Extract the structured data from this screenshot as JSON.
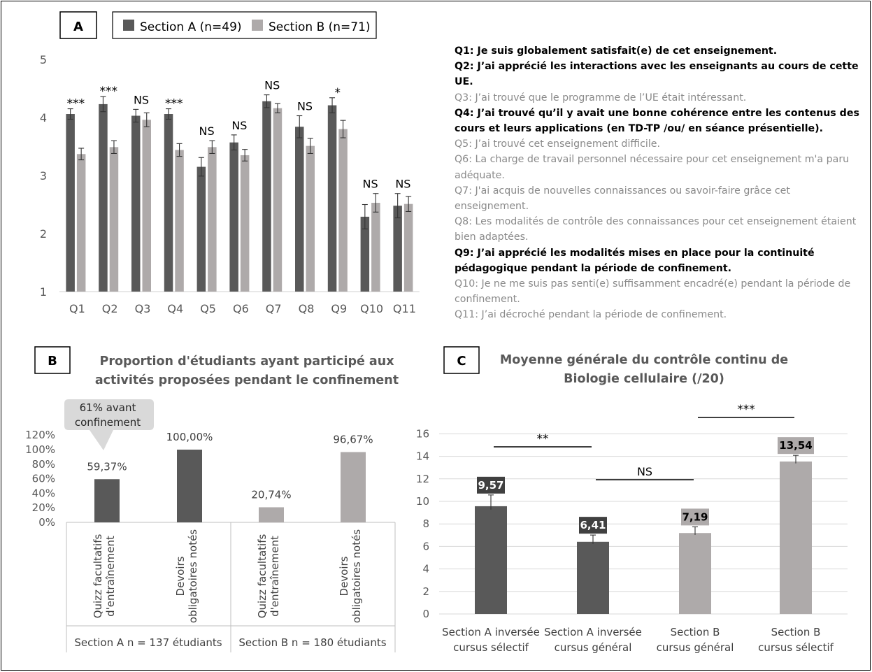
{
  "colors": {
    "dark": "#595959",
    "light": "#aeaaaa",
    "grid": "#d9d9d9",
    "axis_text": "#595959"
  },
  "panels": {
    "a": {
      "letter": "A"
    },
    "b": {
      "letter": "B",
      "title_line1": "Proportion d'étudiants ayant participé aux",
      "title_line2": "activités proposées pendant le confinement"
    },
    "c": {
      "letter": "C",
      "title_line1": "Moyenne générale du contrôle continu de",
      "title_line2": "Biologie cellulaire (/20)"
    }
  },
  "questions": [
    {
      "text": "Q1: Je suis globalement satisfait(e) de cet enseignement.",
      "bold": true
    },
    {
      "text": "Q2: J’ai apprécié les interactions avec les enseignants au cours de cette UE.",
      "bold": true
    },
    {
      "text": "Q3: J’ai trouvé que le programme de l’UE était intéressant.",
      "bold": false
    },
    {
      "text": "Q4: J’ai trouvé qu’il y avait une bonne cohérence entre les contenus des cours et leurs applications (en TD-TP /ou/ en séance présentielle).",
      "bold": true
    },
    {
      "text": "Q5: J’ai trouvé cet enseignement difficile.",
      "bold": false
    },
    {
      "text": "Q6: La charge de travail personnel nécessaire pour cet enseignement m'a paru adéquate.",
      "bold": false
    },
    {
      "text": "Q7: J'ai acquis de nouvelles connaissances ou savoir-faire grâce  cet enseignement.",
      "bold": false
    },
    {
      "text": "Q8: Les modalités de contrôle des connaissances pour cet enseignement étaient bien adaptées.",
      "bold": false
    },
    {
      "text": "Q9: J’ai apprécié les modalités mises en place pour la continuité pédagogique pendant la période de confinement.",
      "bold": true
    },
    {
      "text": "Q10: Je ne me suis pas senti(e) suffisamment encadré(e) pendant la période de confinement.",
      "bold": false
    },
    {
      "text": "Q11: J’ai décroché pendant la période de confinement.",
      "bold": false
    }
  ],
  "chart_data": [
    {
      "type": "bar",
      "panel": "A",
      "categories": [
        "Q1",
        "Q2",
        "Q3",
        "Q4",
        "Q5",
        "Q6",
        "Q7",
        "Q8",
        "Q9",
        "Q10",
        "Q11"
      ],
      "series": [
        {
          "name": "Section A (n=49)",
          "color": "#595959",
          "values": [
            4.06,
            4.23,
            4.03,
            4.06,
            3.15,
            3.57,
            4.28,
            3.84,
            4.21,
            2.29,
            2.48
          ],
          "errors": [
            0.09,
            0.13,
            0.11,
            0.09,
            0.16,
            0.13,
            0.11,
            0.19,
            0.13,
            0.21,
            0.21
          ]
        },
        {
          "name": "Section B (n=71)",
          "color": "#aeaaaa",
          "values": [
            3.37,
            3.49,
            3.96,
            3.44,
            3.49,
            3.35,
            4.16,
            3.51,
            3.8,
            2.53,
            2.51
          ],
          "errors": [
            0.1,
            0.11,
            0.12,
            0.11,
            0.11,
            0.1,
            0.08,
            0.13,
            0.15,
            0.16,
            0.13
          ]
        }
      ],
      "significance": [
        "***",
        "***",
        "NS",
        "***",
        "NS",
        "NS",
        "NS",
        "NS",
        "*",
        "NS",
        "NS"
      ],
      "yticks": [
        1,
        2,
        3,
        4,
        5
      ],
      "ylim": [
        1,
        5
      ],
      "grid": false,
      "legend": "top"
    },
    {
      "type": "bar",
      "panel": "B",
      "bars": [
        {
          "label_line1": "Quizz facultatifs",
          "label_line2": "d'entraînement",
          "value": 59.37,
          "value_label": "59,37%",
          "color": "#595959"
        },
        {
          "label_line1": "Devoirs",
          "label_line2": "obligatoires notés",
          "value": 100,
          "value_label": "100,00%",
          "color": "#595959"
        },
        {
          "label_line1": "Quizz facultatifs",
          "label_line2": "d'entraînement",
          "value": 20.74,
          "value_label": "20,74%",
          "color": "#aeaaaa"
        },
        {
          "label_line1": "Devoirs",
          "label_line2": "obligatoires notés",
          "value": 96.67,
          "value_label": "96,67%",
          "color": "#aeaaaa"
        }
      ],
      "groups": [
        "Section A n = 137 étudiants",
        "Section B n = 180 étudiants"
      ],
      "yticks": [
        "0%",
        "20%",
        "40%",
        "60%",
        "80%",
        "100%",
        "120%"
      ],
      "ylim": [
        0,
        120
      ],
      "callout_line1": "61% avant",
      "callout_line2": "confinement",
      "grid": false
    },
    {
      "type": "bar",
      "panel": "C",
      "bars": [
        {
          "label_line1": "Section A inversée",
          "label_line2": "cursus sélectif",
          "value": 9.57,
          "value_label": "9,57",
          "error": 1.0,
          "color": "#595959"
        },
        {
          "label_line1": "Section A inversée",
          "label_line2": "cursus général",
          "value": 6.41,
          "value_label": "6,41",
          "error": 0.6,
          "color": "#595959"
        },
        {
          "label_line1": "Section B",
          "label_line2": "cursus général",
          "value": 7.19,
          "value_label": "7,19",
          "error": 0.55,
          "color": "#aeaaaa"
        },
        {
          "label_line1": "Section B",
          "label_line2": "cursus sélectif",
          "value": 13.54,
          "value_label": "13,54",
          "error": 0.55,
          "color": "#aeaaaa"
        }
      ],
      "comparisons": [
        {
          "from": 0,
          "to": 1,
          "label": "**"
        },
        {
          "from": 1,
          "to": 2,
          "label": "NS"
        },
        {
          "from": 2,
          "to": 3,
          "label": "***"
        }
      ],
      "yticks": [
        0,
        2,
        4,
        6,
        8,
        10,
        12,
        14,
        16
      ],
      "ylim": [
        0,
        16
      ],
      "grid": true
    }
  ]
}
